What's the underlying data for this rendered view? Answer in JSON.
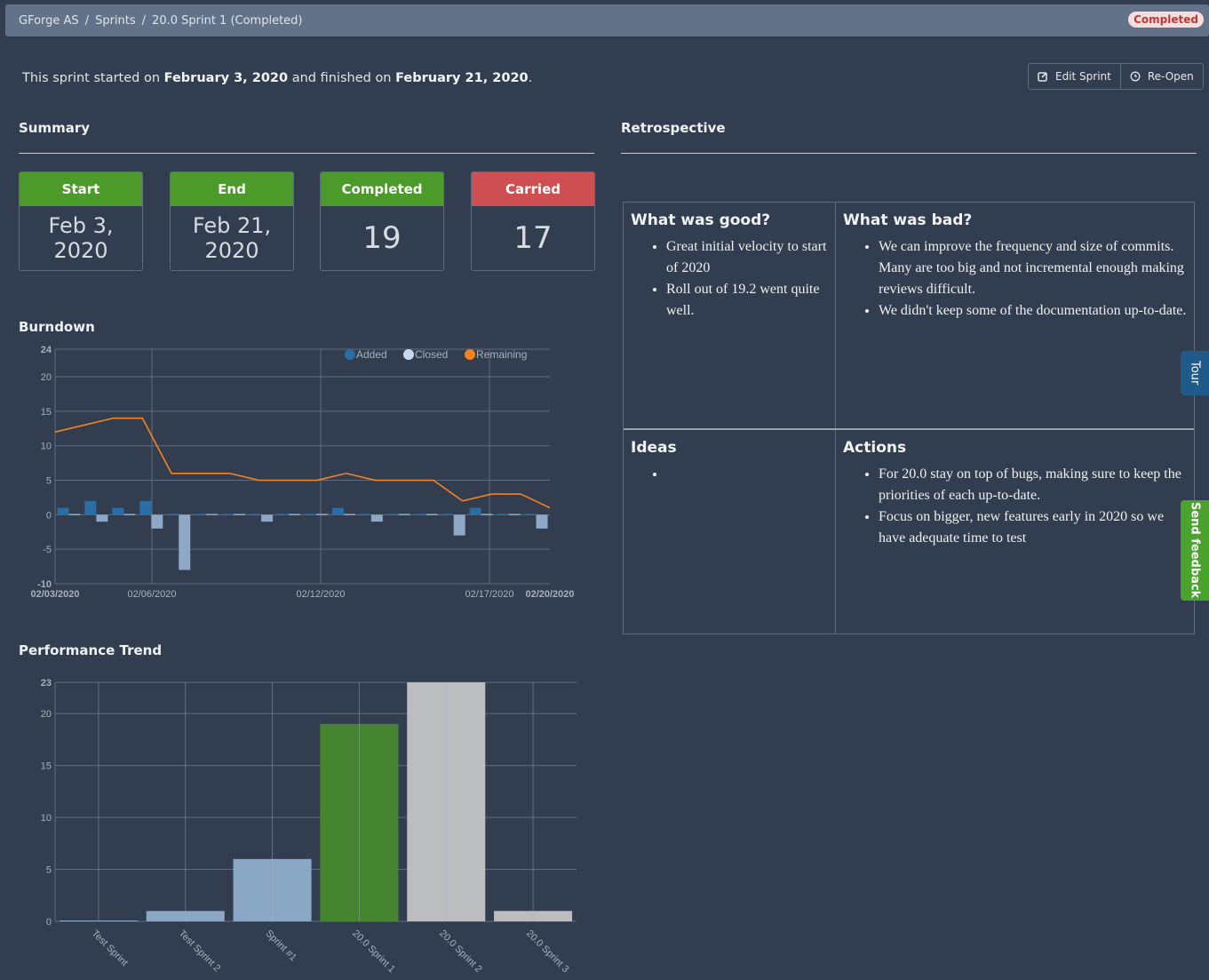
{
  "breadcrumb": {
    "items": [
      "GForge AS",
      "Sprints",
      "20.0 Sprint 1 (Completed)"
    ],
    "separator": "/",
    "status_badge": "Completed"
  },
  "intro": {
    "prefix": "This sprint started on ",
    "start": "February 3, 2020",
    "middle": " and finished on ",
    "end": "February 21, 2020",
    "suffix": "."
  },
  "actions": {
    "edit": "Edit Sprint",
    "reopen": "Re-Open",
    "edit_icon": "edit-icon",
    "reopen_icon": "clock-icon"
  },
  "summary": {
    "title": "Summary",
    "cards": [
      {
        "label": "Start",
        "value": "Feb 3, 2020",
        "color": "#4c9a2a"
      },
      {
        "label": "End",
        "value": "Feb 21, 2020",
        "color": "#4c9a2a"
      },
      {
        "label": "Completed",
        "value": "19",
        "color": "#4c9a2a"
      },
      {
        "label": "Carried",
        "value": "17",
        "color": "#cf4e51"
      }
    ]
  },
  "retrospective": {
    "title": "Retrospective",
    "good": {
      "title": "What was good?",
      "items": [
        "Great initial velocity to start of 2020",
        "Roll out of 19.2 went quite well."
      ]
    },
    "bad": {
      "title": "What was bad?",
      "items": [
        "We can improve the frequency and size of commits. Many are too big and not incremental enough making reviews difficult.",
        "We didn't keep some of the documentation up-to-date."
      ]
    },
    "ideas": {
      "title": "Ideas",
      "items": [
        ""
      ]
    },
    "actions": {
      "title": "Actions",
      "items": [
        "For 20.0 stay on top of bugs, making sure to keep the priorities of each up-to-date.",
        "Focus on bigger, new features early in 2020 so we have adequate time to test"
      ]
    }
  },
  "side_tabs": {
    "tour": "Tour",
    "feedback": "Send feedback"
  },
  "burndown_title": "Burndown",
  "performance_title": "Performance Trend",
  "chart_data": [
    {
      "type": "bar+line",
      "title": "Burndown",
      "x": [
        "02/03/2020",
        "02/04/2020",
        "02/05/2020",
        "02/06/2020",
        "02/07/2020",
        "02/08/2020",
        "02/09/2020",
        "02/10/2020",
        "02/11/2020",
        "02/12/2020",
        "02/13/2020",
        "02/14/2020",
        "02/15/2020",
        "02/16/2020",
        "02/17/2020",
        "02/18/2020",
        "02/19/2020",
        "02/20/2020"
      ],
      "x_tick_labels": [
        "02/03/2020",
        "02/06/2020",
        "02/12/2020",
        "02/17/2020",
        "02/20/2020"
      ],
      "series": [
        {
          "name": "Added",
          "type": "bar",
          "color": "#2b6ea6",
          "values": [
            1,
            2,
            1,
            2,
            0,
            0,
            0,
            0,
            0,
            0,
            1,
            0,
            0,
            0,
            0,
            1,
            0,
            0
          ]
        },
        {
          "name": "Closed",
          "type": "bar",
          "color": "#8fa8c8",
          "values": [
            0,
            -1,
            0,
            -2,
            -8,
            0,
            0,
            -1,
            0,
            0,
            0,
            -1,
            0,
            0,
            -3,
            0,
            0,
            -2
          ]
        },
        {
          "name": "Remaining",
          "type": "line",
          "color": "#f5821f",
          "values": [
            12,
            13,
            14,
            14,
            6,
            6,
            6,
            5,
            5,
            5,
            6,
            5,
            5,
            5,
            2,
            3,
            3,
            1
          ]
        }
      ],
      "ylim": [
        -10,
        24
      ],
      "y_ticks": [
        -10,
        -5,
        0,
        5,
        10,
        15,
        20,
        24
      ],
      "grid": true,
      "legend": "top-right"
    },
    {
      "type": "bar",
      "title": "Performance Trend",
      "categories": [
        "Test Sprint",
        "Test Sprint 2",
        "Sprint #1",
        "20.0 Sprint 1",
        "20.0 Sprint 2",
        "20.0 Sprint 3"
      ],
      "values": [
        0,
        1,
        6,
        19,
        23,
        1
      ],
      "colors": [
        "#8aa7c6",
        "#8aa7c6",
        "#8aa7c6",
        "#46852f",
        "#bbbdbf",
        "#bbbdbf"
      ],
      "ylim": [
        0,
        23
      ],
      "y_ticks": [
        0,
        5,
        10,
        15,
        20,
        23
      ],
      "grid": true
    }
  ]
}
